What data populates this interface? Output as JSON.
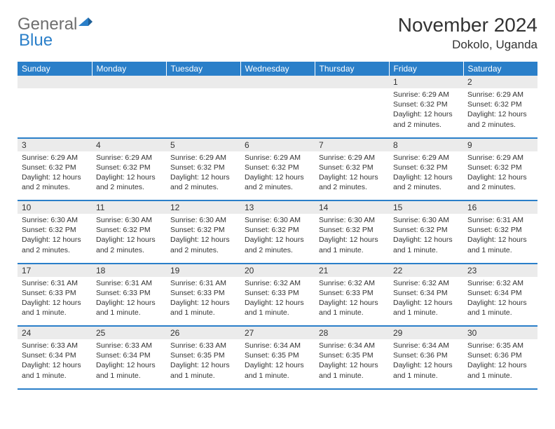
{
  "logo": {
    "word1": "General",
    "word2": "Blue",
    "word1_color": "#6e6e6e",
    "word2_color": "#2a7fc9",
    "flag_color": "#2a7fc9"
  },
  "title": "November 2024",
  "location": "Dokolo, Uganda",
  "header_bg": "#2a7fc9",
  "header_fg": "#ffffff",
  "daynum_bg": "#ebebeb",
  "rule_color": "#2a7fc9",
  "text_color": "#333333",
  "body_fontsize": 10.5,
  "daynum_fontsize": 12,
  "header_fontsize": 12,
  "title_fontsize": 28,
  "location_fontsize": 17,
  "columns": [
    "Sunday",
    "Monday",
    "Tuesday",
    "Wednesday",
    "Thursday",
    "Friday",
    "Saturday"
  ],
  "weeks": [
    {
      "nums": [
        "",
        "",
        "",
        "",
        "",
        "1",
        "2"
      ],
      "details": [
        "",
        "",
        "",
        "",
        "",
        "Sunrise: 6:29 AM\nSunset: 6:32 PM\nDaylight: 12 hours and 2 minutes.",
        "Sunrise: 6:29 AM\nSunset: 6:32 PM\nDaylight: 12 hours and 2 minutes."
      ]
    },
    {
      "nums": [
        "3",
        "4",
        "5",
        "6",
        "7",
        "8",
        "9"
      ],
      "details": [
        "Sunrise: 6:29 AM\nSunset: 6:32 PM\nDaylight: 12 hours and 2 minutes.",
        "Sunrise: 6:29 AM\nSunset: 6:32 PM\nDaylight: 12 hours and 2 minutes.",
        "Sunrise: 6:29 AM\nSunset: 6:32 PM\nDaylight: 12 hours and 2 minutes.",
        "Sunrise: 6:29 AM\nSunset: 6:32 PM\nDaylight: 12 hours and 2 minutes.",
        "Sunrise: 6:29 AM\nSunset: 6:32 PM\nDaylight: 12 hours and 2 minutes.",
        "Sunrise: 6:29 AM\nSunset: 6:32 PM\nDaylight: 12 hours and 2 minutes.",
        "Sunrise: 6:29 AM\nSunset: 6:32 PM\nDaylight: 12 hours and 2 minutes."
      ]
    },
    {
      "nums": [
        "10",
        "11",
        "12",
        "13",
        "14",
        "15",
        "16"
      ],
      "details": [
        "Sunrise: 6:30 AM\nSunset: 6:32 PM\nDaylight: 12 hours and 2 minutes.",
        "Sunrise: 6:30 AM\nSunset: 6:32 PM\nDaylight: 12 hours and 2 minutes.",
        "Sunrise: 6:30 AM\nSunset: 6:32 PM\nDaylight: 12 hours and 2 minutes.",
        "Sunrise: 6:30 AM\nSunset: 6:32 PM\nDaylight: 12 hours and 2 minutes.",
        "Sunrise: 6:30 AM\nSunset: 6:32 PM\nDaylight: 12 hours and 1 minute.",
        "Sunrise: 6:30 AM\nSunset: 6:32 PM\nDaylight: 12 hours and 1 minute.",
        "Sunrise: 6:31 AM\nSunset: 6:32 PM\nDaylight: 12 hours and 1 minute."
      ]
    },
    {
      "nums": [
        "17",
        "18",
        "19",
        "20",
        "21",
        "22",
        "23"
      ],
      "details": [
        "Sunrise: 6:31 AM\nSunset: 6:33 PM\nDaylight: 12 hours and 1 minute.",
        "Sunrise: 6:31 AM\nSunset: 6:33 PM\nDaylight: 12 hours and 1 minute.",
        "Sunrise: 6:31 AM\nSunset: 6:33 PM\nDaylight: 12 hours and 1 minute.",
        "Sunrise: 6:32 AM\nSunset: 6:33 PM\nDaylight: 12 hours and 1 minute.",
        "Sunrise: 6:32 AM\nSunset: 6:33 PM\nDaylight: 12 hours and 1 minute.",
        "Sunrise: 6:32 AM\nSunset: 6:34 PM\nDaylight: 12 hours and 1 minute.",
        "Sunrise: 6:32 AM\nSunset: 6:34 PM\nDaylight: 12 hours and 1 minute."
      ]
    },
    {
      "nums": [
        "24",
        "25",
        "26",
        "27",
        "28",
        "29",
        "30"
      ],
      "details": [
        "Sunrise: 6:33 AM\nSunset: 6:34 PM\nDaylight: 12 hours and 1 minute.",
        "Sunrise: 6:33 AM\nSunset: 6:34 PM\nDaylight: 12 hours and 1 minute.",
        "Sunrise: 6:33 AM\nSunset: 6:35 PM\nDaylight: 12 hours and 1 minute.",
        "Sunrise: 6:34 AM\nSunset: 6:35 PM\nDaylight: 12 hours and 1 minute.",
        "Sunrise: 6:34 AM\nSunset: 6:35 PM\nDaylight: 12 hours and 1 minute.",
        "Sunrise: 6:34 AM\nSunset: 6:36 PM\nDaylight: 12 hours and 1 minute.",
        "Sunrise: 6:35 AM\nSunset: 6:36 PM\nDaylight: 12 hours and 1 minute."
      ]
    }
  ]
}
